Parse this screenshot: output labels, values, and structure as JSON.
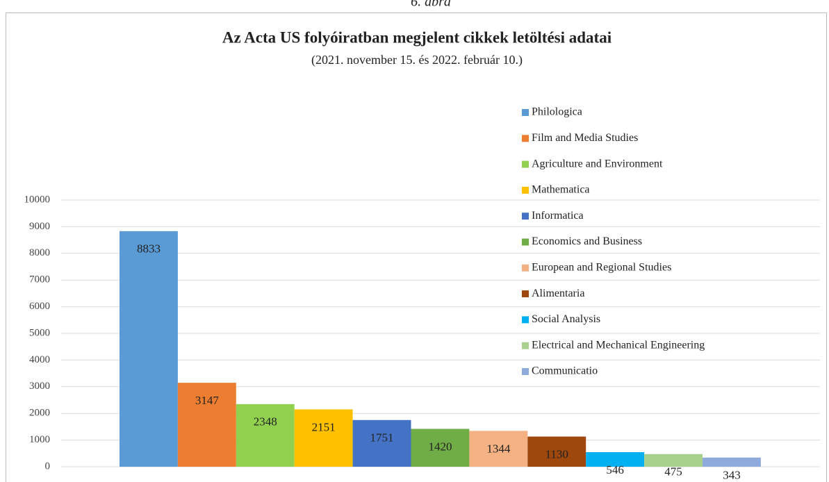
{
  "caption": "6. ábra",
  "chart_data": {
    "type": "bar",
    "title": "Az Acta US folyóiratban megjelent cikkek letöltési adatai",
    "subtitle": "(2021. november 15. és 2022. február 10.)",
    "series": [
      {
        "name": "Philologica",
        "color": "#5b9bd5",
        "values": [
          8833
        ]
      },
      {
        "name": "Film and Media Studies",
        "color": "#ed7d31",
        "values": [
          3147
        ]
      },
      {
        "name": "Agriculture and Environment",
        "color": "#92d050",
        "values": [
          2348
        ]
      },
      {
        "name": "Mathematica",
        "color": "#ffc000",
        "values": [
          2151
        ]
      },
      {
        "name": "Informatica",
        "color": "#4472c4",
        "values": [
          1751
        ]
      },
      {
        "name": "Economics and Business",
        "color": "#70ad47",
        "values": [
          1420
        ]
      },
      {
        "name": "European and Regional Studies",
        "color": "#f4b183",
        "values": [
          1344
        ]
      },
      {
        "name": "Alimentaria",
        "color": "#9e480e",
        "values": [
          1130
        ]
      },
      {
        "name": "Social Analysis",
        "color": "#00b0f0",
        "values": [
          546
        ]
      },
      {
        "name": "Electrical and Mechanical Engineering",
        "color": "#a9d18e",
        "values": [
          475
        ]
      },
      {
        "name": "Communicatio",
        "color": "#8faadc",
        "values": [
          343
        ]
      }
    ],
    "ylim": [
      0,
      10000
    ],
    "yticks": [
      0,
      1000,
      2000,
      3000,
      4000,
      5000,
      6000,
      7000,
      8000,
      9000,
      10000
    ],
    "grid": true,
    "legend": "right"
  }
}
